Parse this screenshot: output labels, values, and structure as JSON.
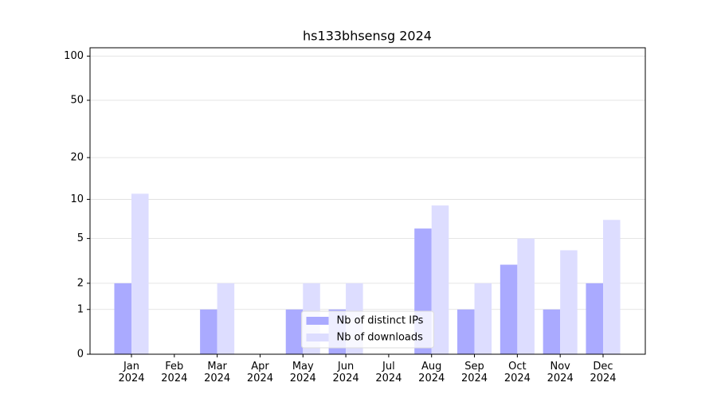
{
  "chart_data": {
    "type": "bar",
    "title": "hs133bhsensg 2024",
    "categories": [
      "Jan 2024",
      "Feb 2024",
      "Mar 2024",
      "Apr 2024",
      "May 2024",
      "Jun 2024",
      "Jul 2024",
      "Aug 2024",
      "Sep 2024",
      "Oct 2024",
      "Nov 2024",
      "Dec 2024"
    ],
    "series": [
      {
        "name": "Nb of distinct IPs",
        "color": "#aaaaff",
        "values": [
          2,
          0,
          1,
          0,
          1,
          1,
          0,
          6,
          1,
          3,
          1,
          2
        ]
      },
      {
        "name": "Nb of downloads",
        "color": "#ddddff",
        "values": [
          11,
          0,
          2,
          0,
          2,
          2,
          0,
          9,
          2,
          5,
          4,
          7
        ]
      }
    ],
    "scale": "log1p",
    "ylim": [
      0,
      114
    ],
    "yticks": [
      0,
      1,
      2,
      5,
      10,
      20,
      50,
      100
    ],
    "grid": true,
    "legend": "lower center"
  }
}
